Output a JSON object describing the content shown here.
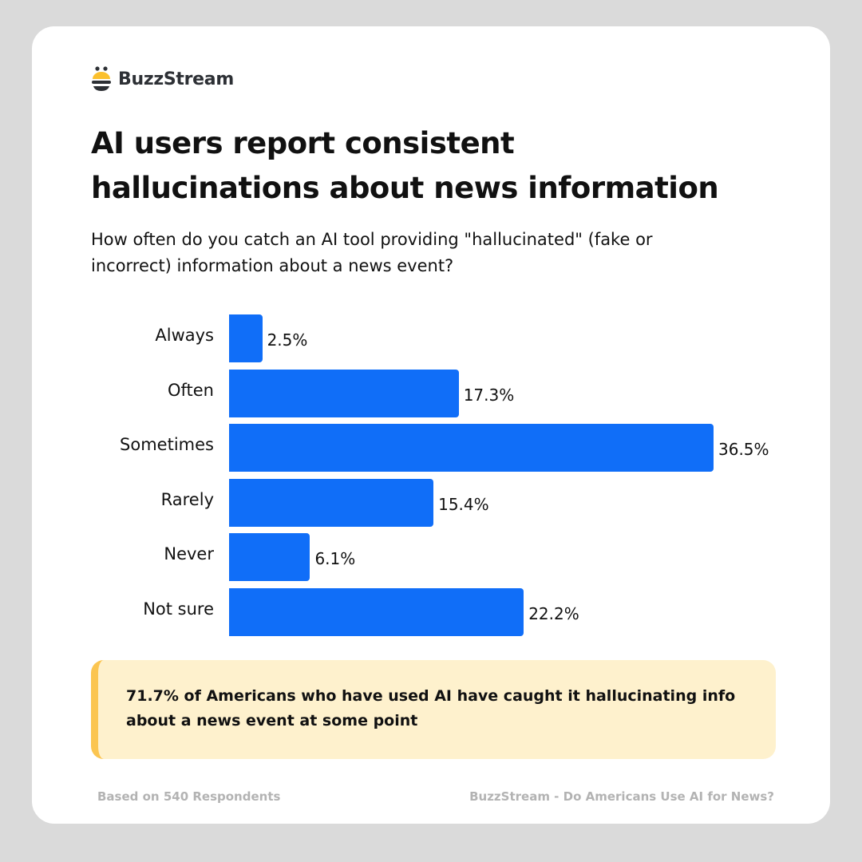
{
  "brand": {
    "name": "BuzzStream",
    "logo_icon": "bee-icon"
  },
  "title": "AI users report consistent hallucinations about news information",
  "subtitle": "How often do you catch an AI tool providing \"hallucinated\" (fake or incorrect) information about a news event?",
  "colors": {
    "bar": "#106ef8",
    "callout_bg": "#fef1cd",
    "callout_accent": "#fbc550",
    "background": "#dadada"
  },
  "chart_data": {
    "type": "bar",
    "orientation": "horizontal",
    "categories": [
      "Always",
      "Often",
      "Sometimes",
      "Rarely",
      "Never",
      "Not sure"
    ],
    "values": [
      2.5,
      17.3,
      36.5,
      15.4,
      6.1,
      22.2
    ],
    "labels": [
      "2.5%",
      "17.3%",
      "36.5%",
      "15.4%",
      "6.1%",
      "22.2%"
    ],
    "unit": "%",
    "grid": false
  },
  "callout": "71.7% of Americans who have used AI have caught it hallucinating info about a news event at some point",
  "footer": {
    "left": "Based on 540 Respondents",
    "right": "BuzzStream - Do Americans Use AI for News?"
  }
}
